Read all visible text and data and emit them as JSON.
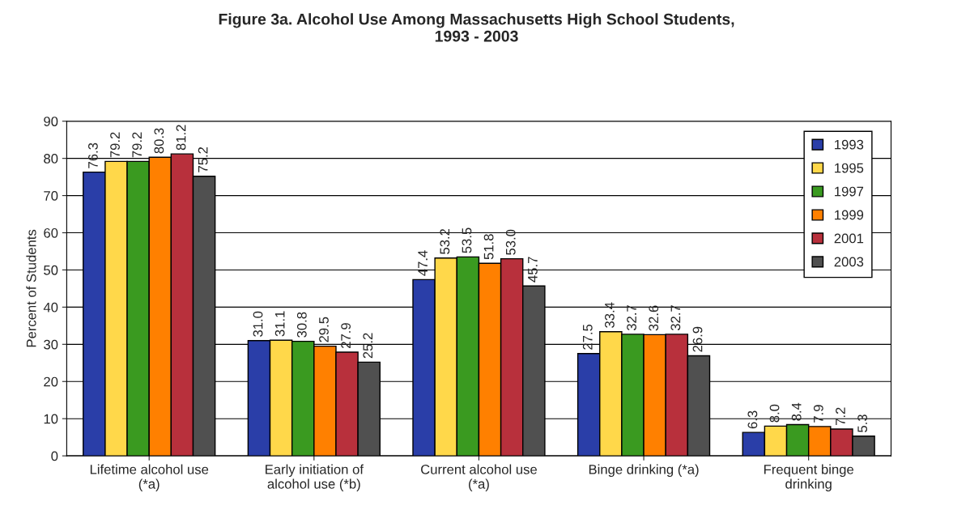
{
  "chart_data": {
    "type": "bar",
    "title": "Figure 3a. Alcohol Use Among Massachusetts High School Students,\n1993 - 2003",
    "ylabel": "Percent of Students",
    "categories": [
      "Lifetime alcohol use\n(*a)",
      "Early initiation of\nalcohol use (*b)",
      "Current alcohol use\n(*a)",
      "Binge drinking (*a)",
      "Frequent binge\ndrinking"
    ],
    "series": [
      {
        "name": "1993",
        "color": "#2a3ea8",
        "values": [
          76.3,
          31.0,
          47.4,
          27.5,
          6.3
        ],
        "value_labels": [
          "76.3",
          "31.0",
          "47.4",
          "27.5",
          "6.3"
        ]
      },
      {
        "name": "1995",
        "color": "#ffd84a",
        "values": [
          79.2,
          31.1,
          53.2,
          33.4,
          8.0
        ],
        "value_labels": [
          "79.2",
          "31.1",
          "53.2",
          "33.4",
          "8.0"
        ]
      },
      {
        "name": "1997",
        "color": "#3a9a20",
        "values": [
          79.2,
          30.8,
          53.5,
          32.7,
          8.4
        ],
        "value_labels": [
          "79.2",
          "30.8",
          "53.5",
          "32.7",
          "8.4"
        ]
      },
      {
        "name": "1999",
        "color": "#ff8000",
        "values": [
          80.3,
          29.5,
          51.8,
          32.6,
          7.9
        ],
        "value_labels": [
          "80.3",
          "29.5",
          "51.8",
          "32.6",
          "7.9"
        ]
      },
      {
        "name": "2001",
        "color": "#b8303c",
        "values": [
          81.2,
          27.9,
          53.0,
          32.7,
          7.2
        ],
        "value_labels": [
          "81.2",
          "27.9",
          "53.0",
          "32.7",
          "7.2"
        ]
      },
      {
        "name": "2003",
        "color": "#505050",
        "values": [
          75.2,
          25.2,
          45.7,
          26.9,
          5.3
        ],
        "value_labels": [
          "75.2",
          "25.2",
          "45.7",
          "26.9",
          "5.3"
        ]
      }
    ],
    "ylim": [
      0,
      90
    ],
    "yticks": [
      0,
      10,
      20,
      30,
      40,
      50,
      60,
      70,
      80,
      90
    ],
    "grid": "y",
    "legend": "top right"
  }
}
